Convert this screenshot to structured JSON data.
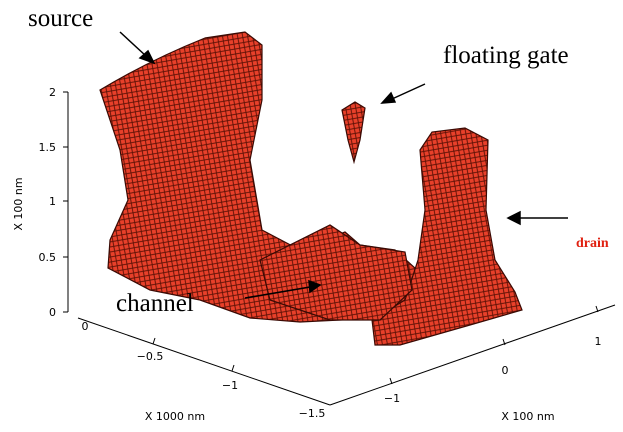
{
  "annotations": {
    "source": "source",
    "floating_gate": "floating gate",
    "channel": "channel",
    "drain": "drain"
  },
  "z_axis": {
    "label": "X 100 nm",
    "ticks": [
      "0",
      "0.5",
      "1",
      "1.5",
      "2"
    ]
  },
  "x_axis": {
    "label": "X 1000 nm",
    "ticks": [
      "0",
      "−0.5",
      "−1",
      "−1.5"
    ]
  },
  "y_axis": {
    "label": "X 100 nm",
    "ticks": [
      "−1",
      "0",
      "1"
    ]
  }
}
